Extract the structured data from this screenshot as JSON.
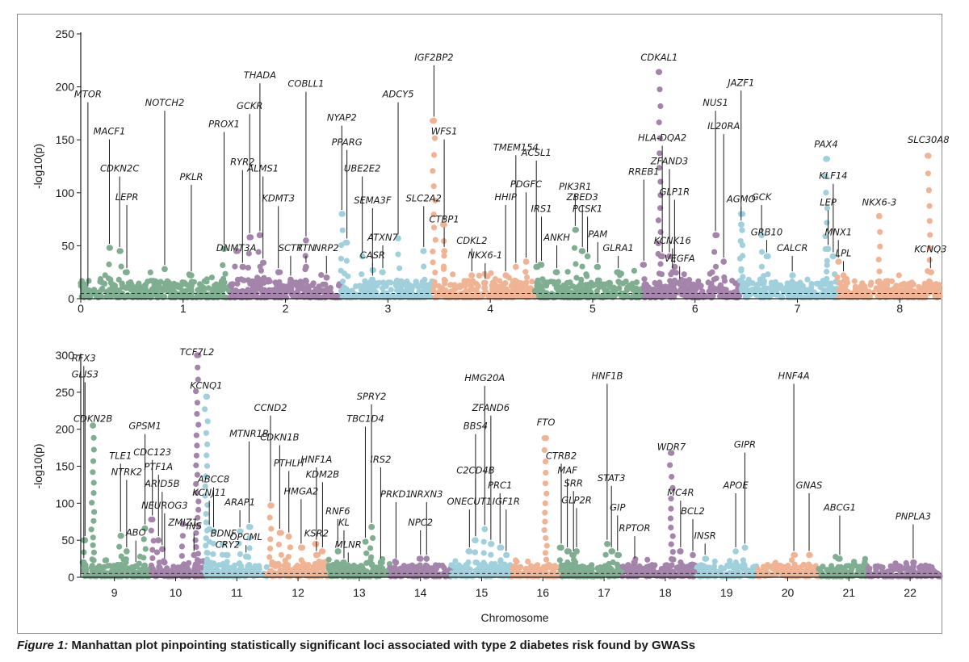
{
  "colors": {
    "green": "#7fae90",
    "purple": "#a584ac",
    "blue": "#9fd0dc",
    "orange": "#f0b494",
    "axis": "#1a1a1a",
    "threshold": "#333333"
  },
  "caption": {
    "label": "Figure 1:",
    "text": " Manhattan plot pinpointing statistically significant loci associated with type 2 diabetes risk found by GWASs"
  },
  "chart_data": [
    {
      "type": "scatter",
      "panel": "top",
      "title": "",
      "ylabel": "-log10(p)",
      "xlabel": "",
      "ylim": [
        0,
        250
      ],
      "yticks": [
        0,
        50,
        100,
        150,
        200,
        250
      ],
      "xlim": [
        0,
        8.4
      ],
      "xticks": [
        0,
        1,
        2,
        3,
        4,
        5,
        6,
        7,
        8
      ],
      "significance_line": 5,
      "segments": [
        {
          "start": 0,
          "end": 1.0,
          "color": "green"
        },
        {
          "start": 1.0,
          "end": 1.45,
          "color": "green"
        },
        {
          "start": 1.45,
          "end": 2.0,
          "color": "purple"
        },
        {
          "start": 2.0,
          "end": 2.55,
          "color": "purple"
        },
        {
          "start": 2.55,
          "end": 3.45,
          "color": "blue"
        },
        {
          "start": 3.45,
          "end": 4.45,
          "color": "orange"
        },
        {
          "start": 4.45,
          "end": 5.5,
          "color": "green"
        },
        {
          "start": 5.5,
          "end": 5.95,
          "color": "purple"
        },
        {
          "start": 5.95,
          "end": 6.45,
          "color": "purple"
        },
        {
          "start": 6.45,
          "end": 7.4,
          "color": "blue"
        },
        {
          "start": 7.4,
          "end": 8.4,
          "color": "orange"
        }
      ],
      "peaks": [
        {
          "label": "MTOR",
          "x": 0.07,
          "y": 8,
          "label_y": 190
        },
        {
          "label": "MACF1",
          "x": 0.28,
          "y": 48,
          "label_y": 155
        },
        {
          "label": "CDKN2C",
          "x": 0.38,
          "y": 45,
          "label_y": 120
        },
        {
          "label": "LEPR",
          "x": 0.45,
          "y": 25,
          "label_y": 93
        },
        {
          "label": "NOTCH2",
          "x": 0.82,
          "y": 28,
          "label_y": 182
        },
        {
          "label": "PKLR",
          "x": 1.08,
          "y": 22,
          "label_y": 112
        },
        {
          "label": "PROX1",
          "x": 1.4,
          "y": 47,
          "label_y": 162
        },
        {
          "label": "RYR2",
          "x": 1.58,
          "y": 30,
          "label_y": 126
        },
        {
          "label": "GCKR",
          "x": 1.65,
          "y": 58,
          "label_y": 179
        },
        {
          "label": "THADA",
          "x": 1.75,
          "y": 60,
          "label_y": 208
        },
        {
          "label": "ALMS1",
          "x": 1.78,
          "y": 34,
          "label_y": 120
        },
        {
          "label": "DNMT3A",
          "x": 1.52,
          "y": 45,
          "label_y": 45
        },
        {
          "label": "KDMT3",
          "x": 1.93,
          "y": 25,
          "label_y": 92
        },
        {
          "label": "SCTR",
          "x": 2.05,
          "y": 18,
          "label_y": 45
        },
        {
          "label": "COBLL1",
          "x": 2.2,
          "y": 55,
          "label_y": 200
        },
        {
          "label": "TTN",
          "x": 2.2,
          "y": 30,
          "label_y": 45
        },
        {
          "label": "NRP2",
          "x": 2.4,
          "y": 20,
          "label_y": 45
        },
        {
          "label": "NYAP2",
          "x": 2.55,
          "y": 80,
          "label_y": 168
        },
        {
          "label": "PPARG",
          "x": 2.6,
          "y": 53,
          "label_y": 145
        },
        {
          "label": "UBE2E2",
          "x": 2.75,
          "y": 40,
          "label_y": 120
        },
        {
          "label": "SEMA3F",
          "x": 2.85,
          "y": 27,
          "label_y": 90
        },
        {
          "label": "ATXN7",
          "x": 2.95,
          "y": 25,
          "label_y": 55
        },
        {
          "label": "CASR",
          "x": 2.85,
          "y": 18,
          "label_y": 38
        },
        {
          "label": "ADCY5",
          "x": 3.1,
          "y": 57,
          "label_y": 190
        },
        {
          "label": "SLC2A2",
          "x": 3.35,
          "y": 45,
          "label_y": 92
        },
        {
          "label": "IGF2BP2",
          "x": 3.45,
          "y": 168,
          "label_y": 225
        },
        {
          "label": "WFS1",
          "x": 3.55,
          "y": 70,
          "label_y": 155
        },
        {
          "label": "CTBP1",
          "x": 3.55,
          "y": 45,
          "label_y": 72
        },
        {
          "label": "CDKL2",
          "x": 3.82,
          "y": 22,
          "label_y": 52
        },
        {
          "label": "NKX6-1",
          "x": 3.95,
          "y": 15,
          "label_y": 38
        },
        {
          "label": "HHIP",
          "x": 4.15,
          "y": 22,
          "label_y": 93
        },
        {
          "label": "TMEM154",
          "x": 4.25,
          "y": 30,
          "label_y": 140
        },
        {
          "label": "PDGFC",
          "x": 4.35,
          "y": 35,
          "label_y": 105
        },
        {
          "label": "ACSL1",
          "x": 4.45,
          "y": 30,
          "label_y": 135
        },
        {
          "label": "IRS1",
          "x": 4.5,
          "y": 32,
          "label_y": 82
        },
        {
          "label": "ANKH",
          "x": 4.65,
          "y": 25,
          "label_y": 55
        },
        {
          "label": "PIK3R1",
          "x": 4.83,
          "y": 65,
          "label_y": 103
        },
        {
          "label": "ZBED3",
          "x": 4.9,
          "y": 45,
          "label_y": 93
        },
        {
          "label": "PCSK1",
          "x": 4.95,
          "y": 40,
          "label_y": 82
        },
        {
          "label": "PAM",
          "x": 5.05,
          "y": 30,
          "label_y": 58
        },
        {
          "label": "GLRA1",
          "x": 5.25,
          "y": 25,
          "label_y": 45
        },
        {
          "label": "RREB1",
          "x": 5.5,
          "y": 32,
          "label_y": 117
        },
        {
          "label": "CDKAL1",
          "x": 5.65,
          "y": 214,
          "label_y": 225
        },
        {
          "label": "HLA-DQA2",
          "x": 5.68,
          "y": 40,
          "label_y": 149
        },
        {
          "label": "ZFAND3",
          "x": 5.75,
          "y": 40,
          "label_y": 127
        },
        {
          "label": "GLP1R",
          "x": 5.8,
          "y": 30,
          "label_y": 98
        },
        {
          "label": "KCNK16",
          "x": 5.78,
          "y": 25,
          "label_y": 52
        },
        {
          "label": "VEGFA",
          "x": 5.85,
          "y": 15,
          "label_y": 35
        },
        {
          "label": "NUS1",
          "x": 6.2,
          "y": 60,
          "label_y": 182
        },
        {
          "label": "IL20RA",
          "x": 6.28,
          "y": 35,
          "label_y": 160
        },
        {
          "label": "JAZF1",
          "x": 6.45,
          "y": 80,
          "label_y": 201
        },
        {
          "label": "AGMO",
          "x": 6.45,
          "y": 70,
          "label_y": 91
        },
        {
          "label": "GCK",
          "x": 6.65,
          "y": 60,
          "label_y": 93
        },
        {
          "label": "GRB10",
          "x": 6.7,
          "y": 40,
          "label_y": 60
        },
        {
          "label": "CALCR",
          "x": 6.95,
          "y": 22,
          "label_y": 45
        },
        {
          "label": "PAX4",
          "x": 7.28,
          "y": 132,
          "label_y": 143
        },
        {
          "label": "KLF14",
          "x": 7.35,
          "y": 40,
          "label_y": 113
        },
        {
          "label": "LEP",
          "x": 7.3,
          "y": 47,
          "label_y": 88
        },
        {
          "label": "MNX1",
          "x": 7.4,
          "y": 35,
          "label_y": 60
        },
        {
          "label": "LPL",
          "x": 7.45,
          "y": 22,
          "label_y": 40
        },
        {
          "label": "NKX6-3",
          "x": 7.8,
          "y": 78,
          "label_y": 88
        },
        {
          "label": "SLC30A8",
          "x": 8.28,
          "y": 135,
          "label_y": 147
        },
        {
          "label": "KCNQ3",
          "x": 8.3,
          "y": 25,
          "label_y": 44
        }
      ]
    },
    {
      "type": "scatter",
      "panel": "bottom",
      "title": "",
      "ylabel": "-log10(p)",
      "xlabel": "Chromosome",
      "ylim": [
        0,
        300
      ],
      "yticks": [
        0,
        50,
        100,
        150,
        200,
        250,
        300
      ],
      "xlim": [
        8.45,
        22.5
      ],
      "xticks": [
        9,
        10,
        11,
        12,
        13,
        14,
        15,
        16,
        17,
        18,
        19,
        20,
        21,
        22
      ],
      "significance_line": 5,
      "segments": [
        {
          "start": 8.45,
          "end": 9.0,
          "color": "green"
        },
        {
          "start": 9.0,
          "end": 9.6,
          "color": "green"
        },
        {
          "start": 9.6,
          "end": 10.0,
          "color": "purple"
        },
        {
          "start": 10.0,
          "end": 10.5,
          "color": "purple"
        },
        {
          "start": 10.5,
          "end": 11.5,
          "color": "blue"
        },
        {
          "start": 11.5,
          "end": 12.5,
          "color": "orange"
        },
        {
          "start": 12.5,
          "end": 13.5,
          "color": "green"
        },
        {
          "start": 13.5,
          "end": 14.5,
          "color": "purple"
        },
        {
          "start": 14.5,
          "end": 15.5,
          "color": "blue"
        },
        {
          "start": 15.5,
          "end": 16.3,
          "color": "orange"
        },
        {
          "start": 16.3,
          "end": 17.3,
          "color": "green"
        },
        {
          "start": 17.3,
          "end": 18.5,
          "color": "purple"
        },
        {
          "start": 18.5,
          "end": 19.5,
          "color": "blue"
        },
        {
          "start": 19.5,
          "end": 20.5,
          "color": "orange"
        },
        {
          "start": 20.5,
          "end": 21.3,
          "color": "green"
        },
        {
          "start": 21.3,
          "end": 22.5,
          "color": "purple"
        }
      ],
      "peaks": [
        {
          "label": "RFX3",
          "x": 8.5,
          "y": 20,
          "label_y": 292
        },
        {
          "label": "GLIS3",
          "x": 8.52,
          "y": 50,
          "label_y": 270
        },
        {
          "label": "CDKN2B",
          "x": 8.65,
          "y": 205,
          "label_y": 210
        },
        {
          "label": "TLE1",
          "x": 9.1,
          "y": 56,
          "label_y": 160
        },
        {
          "label": "NTRK2",
          "x": 9.2,
          "y": 35,
          "label_y": 138
        },
        {
          "label": "ABO",
          "x": 9.35,
          "y": 15,
          "label_y": 56
        },
        {
          "label": "GPSM1",
          "x": 9.5,
          "y": 66,
          "label_y": 200
        },
        {
          "label": "CDC123",
          "x": 9.62,
          "y": 78,
          "label_y": 165
        },
        {
          "label": "PTF1A",
          "x": 9.72,
          "y": 50,
          "label_y": 145
        },
        {
          "label": "ARID5B",
          "x": 9.78,
          "y": 38,
          "label_y": 122
        },
        {
          "label": "NEUROG3",
          "x": 9.82,
          "y": 20,
          "label_y": 93
        },
        {
          "label": "ZMIZ1",
          "x": 10.12,
          "y": 72,
          "label_y": 70
        },
        {
          "label": "TCF7L2",
          "x": 10.35,
          "y": 300,
          "label_y": 300
        },
        {
          "label": "KCNQ1",
          "x": 10.5,
          "y": 244,
          "label_y": 255
        },
        {
          "label": "INS",
          "x": 10.3,
          "y": 30,
          "label_y": 65
        },
        {
          "label": "KCNJ11",
          "x": 10.55,
          "y": 65,
          "label_y": 110
        },
        {
          "label": "ABCC8",
          "x": 10.62,
          "y": 62,
          "label_y": 128
        },
        {
          "label": "BDNF",
          "x": 10.78,
          "y": 45,
          "label_y": 55
        },
        {
          "label": "CRY2",
          "x": 10.85,
          "y": 30,
          "label_y": 40
        },
        {
          "label": "ARAP1",
          "x": 11.05,
          "y": 62,
          "label_y": 97
        },
        {
          "label": "OPCML",
          "x": 11.15,
          "y": 28,
          "label_y": 50
        },
        {
          "label": "MTNR1B",
          "x": 11.2,
          "y": 68,
          "label_y": 190
        },
        {
          "label": "CCND2",
          "x": 11.55,
          "y": 97,
          "label_y": 225
        },
        {
          "label": "CDKN1B",
          "x": 11.7,
          "y": 60,
          "label_y": 185
        },
        {
          "label": "PTHLH",
          "x": 11.85,
          "y": 55,
          "label_y": 150
        },
        {
          "label": "HMGA2",
          "x": 12.05,
          "y": 40,
          "label_y": 112
        },
        {
          "label": "KSR2",
          "x": 12.3,
          "y": 30,
          "label_y": 55
        },
        {
          "label": "HNF1A",
          "x": 12.3,
          "y": 45,
          "label_y": 155
        },
        {
          "label": "KDM2B",
          "x": 12.4,
          "y": 35,
          "label_y": 135
        },
        {
          "label": "RNF6",
          "x": 12.65,
          "y": 35,
          "label_y": 85
        },
        {
          "label": "KL",
          "x": 12.75,
          "y": 20,
          "label_y": 70
        },
        {
          "label": "MLNR",
          "x": 12.82,
          "y": 15,
          "label_y": 40
        },
        {
          "label": "TBC1D4",
          "x": 13.1,
          "y": 48,
          "label_y": 210
        },
        {
          "label": "SPRY2",
          "x": 13.2,
          "y": 68,
          "label_y": 240
        },
        {
          "label": "IRS2",
          "x": 13.35,
          "y": 20,
          "label_y": 155
        },
        {
          "label": "PRKD1",
          "x": 13.6,
          "y": 20,
          "label_y": 108
        },
        {
          "label": "NPC2",
          "x": 14.0,
          "y": 25,
          "label_y": 70
        },
        {
          "label": "NRXN3",
          "x": 14.1,
          "y": 25,
          "label_y": 108
        },
        {
          "label": "C2CD4B",
          "x": 14.9,
          "y": 50,
          "label_y": 140
        },
        {
          "label": "ONECUT1",
          "x": 14.8,
          "y": 35,
          "label_y": 98
        },
        {
          "label": "BBS4",
          "x": 14.9,
          "y": 50,
          "label_y": 200
        },
        {
          "label": "HMG20A",
          "x": 15.05,
          "y": 65,
          "label_y": 265
        },
        {
          "label": "ZFAND6",
          "x": 15.15,
          "y": 45,
          "label_y": 225
        },
        {
          "label": "PRC1",
          "x": 15.3,
          "y": 40,
          "label_y": 120
        },
        {
          "label": "IGF1R",
          "x": 15.4,
          "y": 30,
          "label_y": 98
        },
        {
          "label": "FTO",
          "x": 16.05,
          "y": 188,
          "label_y": 205
        },
        {
          "label": "CTRB2",
          "x": 16.3,
          "y": 40,
          "label_y": 160
        },
        {
          "label": "MAF",
          "x": 16.4,
          "y": 35,
          "label_y": 140
        },
        {
          "label": "SRR",
          "x": 16.5,
          "y": 30,
          "label_y": 123
        },
        {
          "label": "GLP2R",
          "x": 16.55,
          "y": 35,
          "label_y": 100
        },
        {
          "label": "HNF1B",
          "x": 17.05,
          "y": 45,
          "label_y": 268
        },
        {
          "label": "STAT3",
          "x": 17.12,
          "y": 35,
          "label_y": 130
        },
        {
          "label": "GIP",
          "x": 17.22,
          "y": 30,
          "label_y": 90
        },
        {
          "label": "RPTOR",
          "x": 17.5,
          "y": 20,
          "label_y": 62
        },
        {
          "label": "WDR7",
          "x": 18.1,
          "y": 168,
          "label_y": 172
        },
        {
          "label": "MC4R",
          "x": 18.25,
          "y": 35,
          "label_y": 110
        },
        {
          "label": "BCL2",
          "x": 18.45,
          "y": 30,
          "label_y": 85
        },
        {
          "label": "INSR",
          "x": 18.65,
          "y": 25,
          "label_y": 52
        },
        {
          "label": "APOE",
          "x": 19.15,
          "y": 35,
          "label_y": 120
        },
        {
          "label": "GIPR",
          "x": 19.3,
          "y": 40,
          "label_y": 175
        },
        {
          "label": "HNF4A",
          "x": 20.1,
          "y": 30,
          "label_y": 268
        },
        {
          "label": "GNAS",
          "x": 20.35,
          "y": 30,
          "label_y": 120
        },
        {
          "label": "ABCG1",
          "x": 20.85,
          "y": 25,
          "label_y": 90
        },
        {
          "label": "PNPLA3",
          "x": 22.05,
          "y": 20,
          "label_y": 78
        }
      ]
    }
  ]
}
